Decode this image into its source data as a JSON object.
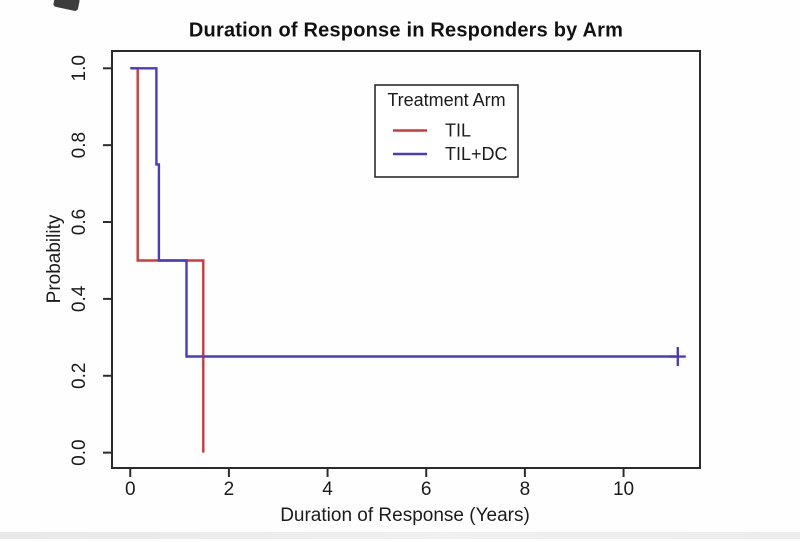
{
  "window": {
    "background": "#fefefe"
  },
  "chart_data": {
    "type": "line",
    "variant": "kaplan-meier-step",
    "title": "Duration of Response in Responders by Arm",
    "xlabel": "Duration of Response (Years)",
    "ylabel": "Probability",
    "x_ticks": [
      0,
      2,
      4,
      6,
      8,
      10
    ],
    "y_ticks": [
      0.0,
      0.2,
      0.4,
      0.6,
      0.8,
      1.0
    ],
    "xlim": [
      -0.37,
      11.55
    ],
    "ylim": [
      -0.04,
      1.045
    ],
    "grid": false,
    "axis_color": "#2b2b2b",
    "text_color": "#1c1c1c",
    "legend": {
      "title": "Treatment Arm",
      "position": "top-center",
      "entries": [
        {
          "label": "TIL",
          "color": "#cc3a3a"
        },
        {
          "label": "TIL+DC",
          "color": "#4a3cbd"
        }
      ]
    },
    "series": [
      {
        "name": "TIL",
        "color": "#cc3a3a",
        "points": [
          [
            0,
            1.0
          ],
          [
            0.15,
            1.0
          ],
          [
            0.15,
            0.5
          ],
          [
            1.48,
            0.5
          ],
          [
            1.48,
            0.0
          ]
        ],
        "censored": []
      },
      {
        "name": "TIL+DC",
        "color": "#4a3cbd",
        "points": [
          [
            0,
            1.0
          ],
          [
            0.53,
            1.0
          ],
          [
            0.53,
            0.75
          ],
          [
            0.58,
            0.75
          ],
          [
            0.58,
            0.5
          ],
          [
            1.14,
            0.5
          ],
          [
            1.14,
            0.25
          ],
          [
            11.1,
            0.25
          ]
        ],
        "censored": [
          [
            11.1,
            0.25
          ]
        ]
      }
    ]
  }
}
